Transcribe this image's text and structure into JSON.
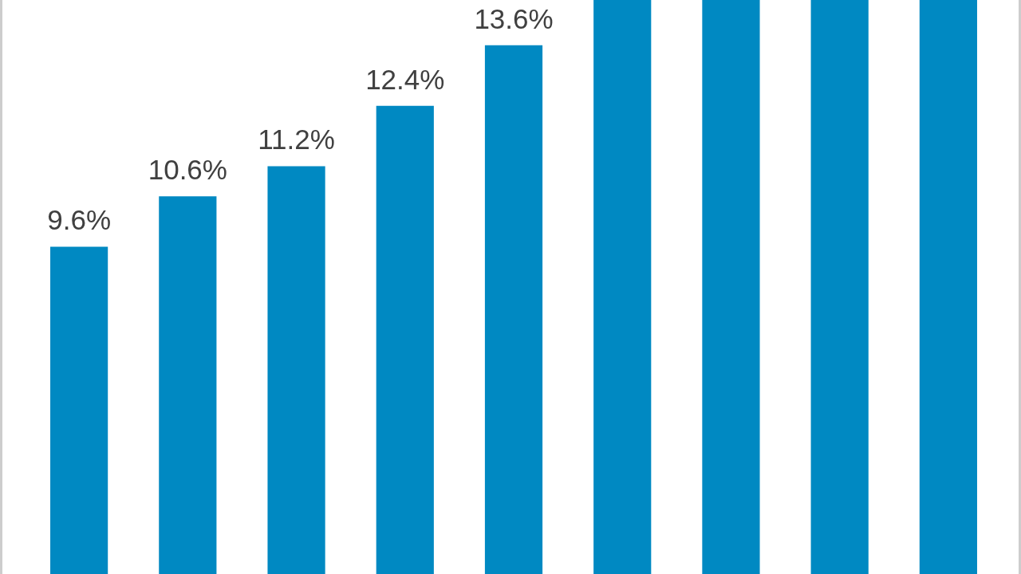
{
  "chart_data": {
    "type": "bar",
    "categories": [
      null,
      null,
      null,
      null,
      null,
      null,
      null,
      null,
      null
    ],
    "values": [
      9.6,
      10.6,
      11.2,
      12.4,
      13.6,
      14.5,
      14.5,
      14.5,
      14.5
    ],
    "value_labels": [
      "9.6%",
      "10.6%",
      "11.2%",
      "12.4%",
      "13.6%",
      null,
      null,
      null,
      null
    ],
    "color": "#0089c2",
    "ylim": [
      3.1,
      14.5
    ]
  }
}
